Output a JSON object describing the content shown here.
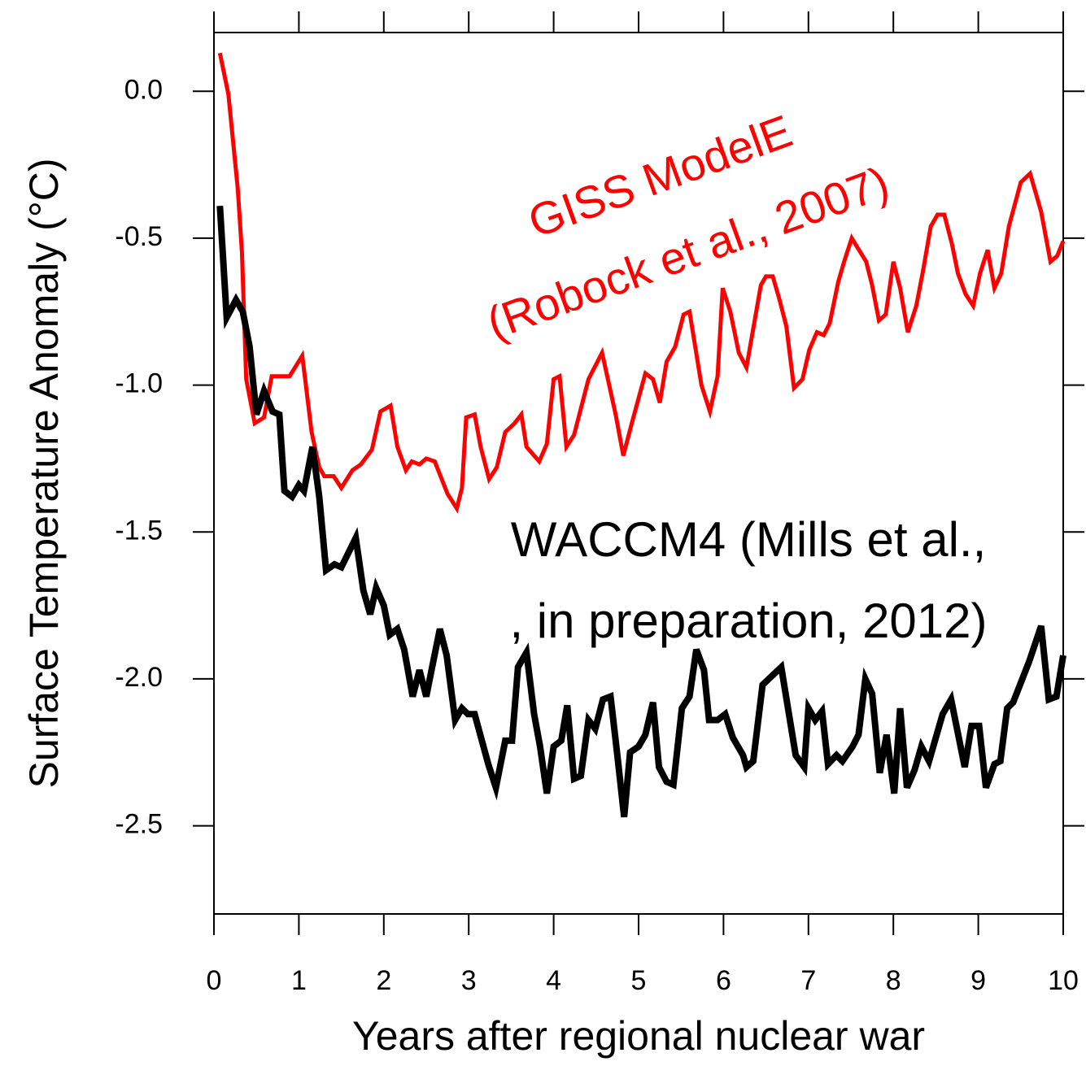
{
  "chart_data": {
    "type": "line",
    "xlabel": "Years after regional nuclear war",
    "ylabel": "Surface Temperature Anomaly (°C)",
    "xlim": [
      0,
      10
    ],
    "xticks": [
      0,
      1,
      2,
      3,
      4,
      5,
      6,
      7,
      8,
      9,
      10
    ],
    "ylim": [
      -2.8,
      0.2
    ],
    "yticks": [
      {
        "value": 0,
        "label": "0.0"
      },
      -0.5,
      {
        "value": -1,
        "label": "-1.0"
      },
      -1.5,
      {
        "value": -2,
        "label": "-2.0"
      },
      -2.5
    ],
    "series": [
      {
        "color": "#ff0000",
        "x": [
          0.07,
          0.17,
          0.28,
          0.33,
          0.38,
          0.48,
          0.59,
          0.68,
          0.89,
          1.04,
          1.15,
          1.24,
          1.3,
          1.41,
          1.5,
          1.63,
          1.73,
          1.86,
          1.96,
          2.08,
          2.16,
          2.26,
          2.33,
          2.42,
          2.5,
          2.6,
          2.75,
          2.86,
          2.92,
          2.97,
          3.07,
          3.14,
          3.24,
          3.33,
          3.43,
          3.54,
          3.62,
          3.68,
          3.83,
          3.92,
          4.0,
          4.07,
          4.15,
          4.24,
          4.41,
          4.57,
          4.73,
          4.82,
          4.92,
          5.08,
          5.17,
          5.25,
          5.33,
          5.43,
          5.53,
          5.6,
          5.74,
          5.84,
          5.93,
          5.99,
          6.08,
          6.18,
          6.27,
          6.44,
          6.5,
          6.58,
          6.66,
          6.74,
          6.83,
          6.93,
          7.01,
          7.1,
          7.18,
          7.25,
          7.35,
          7.42,
          7.51,
          7.68,
          7.75,
          7.83,
          7.91,
          8.0,
          8.08,
          8.17,
          8.27,
          8.35,
          8.44,
          8.52,
          8.6,
          8.69,
          8.76,
          8.85,
          8.94,
          9.02,
          9.11,
          9.19,
          9.27,
          9.36,
          9.5,
          9.61,
          9.74,
          9.85,
          9.93,
          10.0
        ],
        "values": [
          0.13,
          -0.01,
          -0.33,
          -0.55,
          -0.98,
          -1.13,
          -1.11,
          -0.97,
          -0.97,
          -0.9,
          -1.16,
          -1.28,
          -1.31,
          -1.31,
          -1.35,
          -1.29,
          -1.27,
          -1.22,
          -1.09,
          -1.07,
          -1.21,
          -1.29,
          -1.26,
          -1.27,
          -1.25,
          -1.26,
          -1.37,
          -1.42,
          -1.35,
          -1.11,
          -1.1,
          -1.21,
          -1.32,
          -1.28,
          -1.16,
          -1.13,
          -1.1,
          -1.21,
          -1.26,
          -1.2,
          -0.98,
          -0.97,
          -1.21,
          -1.17,
          -0.98,
          -0.89,
          -1.1,
          -1.24,
          -1.13,
          -0.96,
          -0.98,
          -1.06,
          -0.92,
          -0.87,
          -0.76,
          -0.75,
          -1.0,
          -1.09,
          -0.97,
          -0.67,
          -0.75,
          -0.89,
          -0.94,
          -0.66,
          -0.63,
          -0.63,
          -0.71,
          -0.8,
          -1.01,
          -0.98,
          -0.88,
          -0.82,
          -0.83,
          -0.79,
          -0.65,
          -0.58,
          -0.5,
          -0.58,
          -0.66,
          -0.78,
          -0.76,
          -0.58,
          -0.67,
          -0.82,
          -0.73,
          -0.61,
          -0.46,
          -0.42,
          -0.42,
          -0.52,
          -0.62,
          -0.69,
          -0.73,
          -0.62,
          -0.54,
          -0.67,
          -0.62,
          -0.46,
          -0.31,
          -0.28,
          -0.41,
          -0.58,
          -0.56,
          -0.51
        ]
      },
      {
        "color": "#000000",
        "x": [
          0.07,
          0.15,
          0.26,
          0.34,
          0.42,
          0.5,
          0.59,
          0.69,
          0.77,
          0.83,
          0.92,
          1.0,
          1.06,
          1.16,
          1.24,
          1.32,
          1.42,
          1.5,
          1.67,
          1.76,
          1.84,
          1.91,
          2.0,
          2.07,
          2.16,
          2.24,
          2.34,
          2.42,
          2.5,
          2.59,
          2.66,
          2.74,
          2.84,
          2.92,
          2.99,
          3.07,
          3.23,
          3.32,
          3.43,
          3.51,
          3.58,
          3.68,
          3.77,
          3.84,
          3.92,
          4.0,
          4.09,
          4.16,
          4.24,
          4.32,
          4.41,
          4.49,
          4.58,
          4.67,
          4.75,
          4.83,
          4.9,
          5.0,
          5.08,
          5.17,
          5.24,
          5.33,
          5.41,
          5.51,
          5.6,
          5.68,
          5.77,
          5.83,
          5.93,
          6.02,
          6.11,
          6.23,
          6.27,
          6.35,
          6.46,
          6.68,
          6.85,
          6.95,
          7.0,
          7.08,
          7.16,
          7.23,
          7.33,
          7.4,
          7.52,
          7.59,
          7.67,
          7.75,
          7.84,
          7.92,
          8.01,
          8.08,
          8.16,
          8.25,
          8.33,
          8.42,
          8.58,
          8.68,
          8.84,
          8.92,
          9.01,
          9.09,
          9.19,
          9.26,
          9.34,
          9.41,
          9.6,
          9.74,
          9.83,
          9.92,
          10.0
        ],
        "values": [
          -0.39,
          -0.77,
          -0.71,
          -0.75,
          -0.87,
          -1.1,
          -1.02,
          -1.09,
          -1.1,
          -1.36,
          -1.38,
          -1.34,
          -1.36,
          -1.21,
          -1.38,
          -1.63,
          -1.61,
          -1.62,
          -1.52,
          -1.7,
          -1.78,
          -1.69,
          -1.75,
          -1.85,
          -1.83,
          -1.9,
          -2.06,
          -1.97,
          -2.06,
          -1.93,
          -1.83,
          -1.92,
          -2.14,
          -2.1,
          -2.12,
          -2.12,
          -2.29,
          -2.37,
          -2.21,
          -2.21,
          -1.96,
          -1.91,
          -2.12,
          -2.23,
          -2.39,
          -2.23,
          -2.21,
          -2.09,
          -2.34,
          -2.33,
          -2.14,
          -2.17,
          -2.07,
          -2.06,
          -2.26,
          -2.47,
          -2.25,
          -2.23,
          -2.19,
          -2.08,
          -2.3,
          -2.35,
          -2.36,
          -2.1,
          -2.06,
          -1.9,
          -1.97,
          -2.14,
          -2.14,
          -2.12,
          -2.2,
          -2.26,
          -2.3,
          -2.28,
          -2.02,
          -1.96,
          -2.26,
          -2.3,
          -2.1,
          -2.14,
          -2.11,
          -2.29,
          -2.26,
          -2.28,
          -2.23,
          -2.19,
          -2.0,
          -2.05,
          -2.32,
          -2.19,
          -2.39,
          -2.1,
          -2.37,
          -2.31,
          -2.23,
          -2.28,
          -2.12,
          -2.07,
          -2.3,
          -2.16,
          -2.16,
          -2.37,
          -2.29,
          -2.28,
          -2.1,
          -2.08,
          -1.94,
          -1.82,
          -2.07,
          -2.06,
          -1.92
        ]
      }
    ],
    "annotations": [
      {
        "lines": [
          "GISS ModelE",
          "(Robock et al., 2007)"
        ],
        "color": "#ff0000"
      },
      {
        "lines": [
          "WACCM4 (Mills et al.,",
          ", in preparation, 2012)"
        ],
        "color": "#000000"
      }
    ]
  }
}
